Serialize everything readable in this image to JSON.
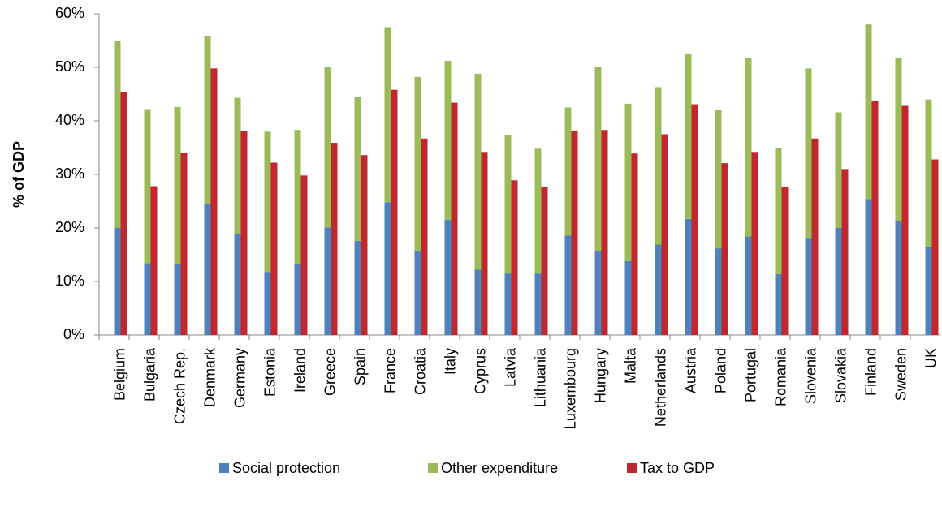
{
  "chart_data": {
    "type": "bar",
    "y_label": "% of GDP",
    "categories": [
      "Belgium",
      "Bulgaria",
      "Czech Rep.",
      "Denmark",
      "Germany",
      "Estonia",
      "Ireland",
      "Greece",
      "Spain",
      "France",
      "Croatia",
      "Italy",
      "Cyprus",
      "Latvia",
      "Lithuania",
      "Luxembourg",
      "Hungary",
      "Malta",
      "Netherlands",
      "Austria",
      "Poland",
      "Portugal",
      "Romania",
      "Slovenia",
      "Slovakia",
      "Finland",
      "Sweden",
      "UK"
    ],
    "series": [
      {
        "name": "Social protection",
        "color": "#4f81bd",
        "stacked": true,
        "values": [
          20,
          13.4,
          13.2,
          24.5,
          18.8,
          11.8,
          13.2,
          20.1,
          17.6,
          24.8,
          15.8,
          21.5,
          12.2,
          11.5,
          11.5,
          18.6,
          15.6,
          13.8,
          16.9,
          21.7,
          16.2,
          18.4,
          11.4,
          18,
          20,
          25.4,
          21.3,
          16.5
        ]
      },
      {
        "name": "Other expenditure",
        "color": "#9bbb59",
        "stacked": true,
        "values": [
          35,
          28.8,
          29.4,
          31.4,
          25.5,
          26.2,
          25.1,
          29.9,
          26.9,
          32.7,
          32.4,
          29.7,
          36.6,
          25.9,
          23.3,
          23.9,
          34.4,
          29.4,
          29.4,
          30.9,
          25.9,
          33.4,
          23.5,
          31.8,
          21.6,
          32.6,
          30.5,
          27.5
        ]
      },
      {
        "name": "Tax to GDP",
        "color": "#c0282d",
        "stacked": false,
        "values": [
          45.3,
          27.8,
          34.1,
          49.8,
          38.1,
          32.2,
          29.8,
          35.9,
          33.6,
          45.8,
          36.7,
          43.4,
          34.2,
          28.9,
          27.7,
          38.2,
          38.3,
          33.9,
          37.5,
          43.1,
          32.1,
          34.2,
          27.7,
          36.7,
          31,
          43.8,
          42.8,
          32.8
        ]
      }
    ],
    "ylim": [
      0,
      60
    ],
    "yticks": [
      {
        "value": 0,
        "label": "0%"
      },
      {
        "value": 10,
        "label": "10%"
      },
      {
        "value": 20,
        "label": "20%"
      },
      {
        "value": 30,
        "label": "30%"
      },
      {
        "value": 40,
        "label": "40%"
      },
      {
        "value": 50,
        "label": "50%"
      },
      {
        "value": 60,
        "label": "60%"
      }
    ],
    "legend": "bottom"
  }
}
